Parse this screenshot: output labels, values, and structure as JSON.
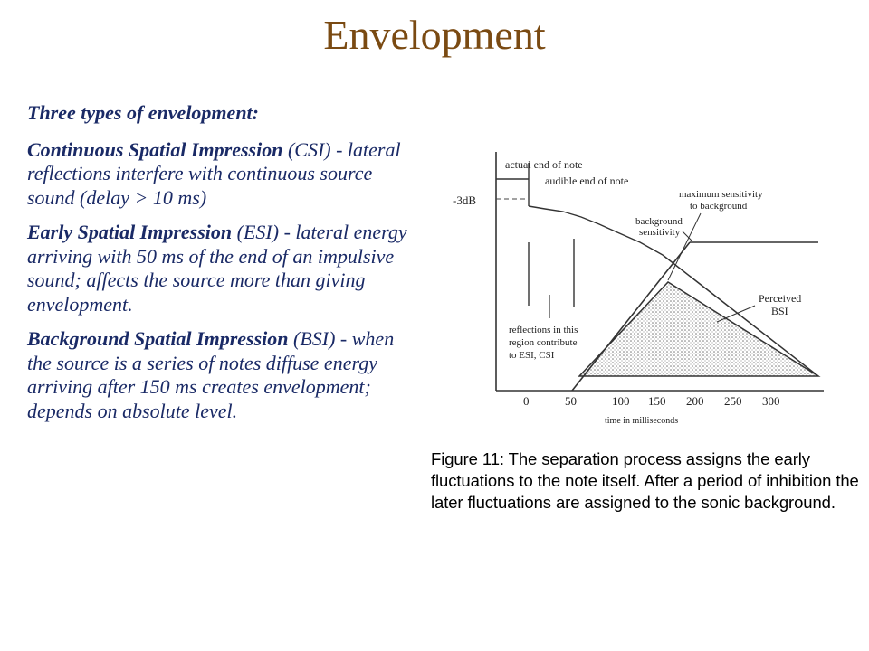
{
  "title": "Envelopment",
  "intro": "Three types of envelopment:",
  "items": [
    {
      "term": "Continuous Spatial Impression",
      "desc": " (CSI) - lateral reflections interfere with continuous source sound (delay > 10 ms)"
    },
    {
      "term": "Early Spatial Impression",
      "desc": " (ESI) - lateral energy arriving with 50 ms of the end of an impulsive sound; affects the source more than giving envelopment."
    },
    {
      "term": "Background Spatial Impression",
      "desc": " (BSI) - when the source is a series of notes diffuse energy arriving after 150 ms creates envelopment; depends on absolute level."
    }
  ],
  "figure": {
    "labels": {
      "actual_end": "actual end of note",
      "audible_end": "audible end of note",
      "db": "-3dB",
      "max_sens_1": "maximum sensitivity",
      "max_sens_2": "to background",
      "bg_sens_1": "background",
      "bg_sens_2": "sensitivity",
      "perceived_1": "Perceived",
      "perceived_2": "BSI",
      "refl_1": "reflections in this",
      "refl_2": "region contribute",
      "refl_3": "to ESI, CSI",
      "xaxis": "time in milliseconds"
    },
    "ticks": [
      "0",
      "50",
      "100",
      "150",
      "200",
      "250",
      "300"
    ]
  },
  "caption": "Figure 11:  The separation process assigns the early fluctuations to the note itself.  After a period of inhibition the later fluctuations are assigned to the sonic background."
}
